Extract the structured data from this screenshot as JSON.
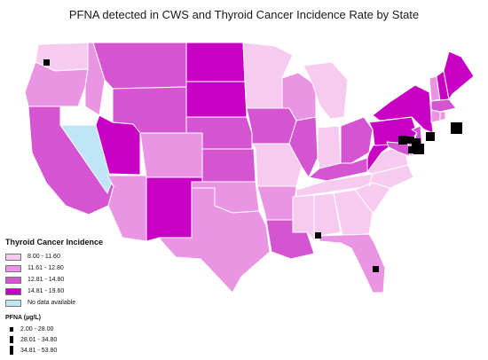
{
  "title": "PFNA detected in CWS and Thyroid Cancer Incidence Rate by State",
  "legend": {
    "thyroid_title": "Thyroid Cancer Incidence",
    "classes": [
      {
        "label": "8.00 - 11.60",
        "color": "#f7cbf0"
      },
      {
        "label": "11.61 - 12.80",
        "color": "#ea94e4"
      },
      {
        "label": "12.81 - 14.80",
        "color": "#d554d2"
      },
      {
        "label": "14.81 - 19.60",
        "color": "#c800c4"
      },
      {
        "label": "No data available",
        "color": "#bfe6f7"
      }
    ],
    "pfna_title": "PFNA (µg/L)",
    "pfna_classes": [
      {
        "label": "2.00 - 28.00"
      },
      {
        "label": "28.01 - 34.80"
      },
      {
        "label": "34.81 - 53.80"
      }
    ]
  }
}
